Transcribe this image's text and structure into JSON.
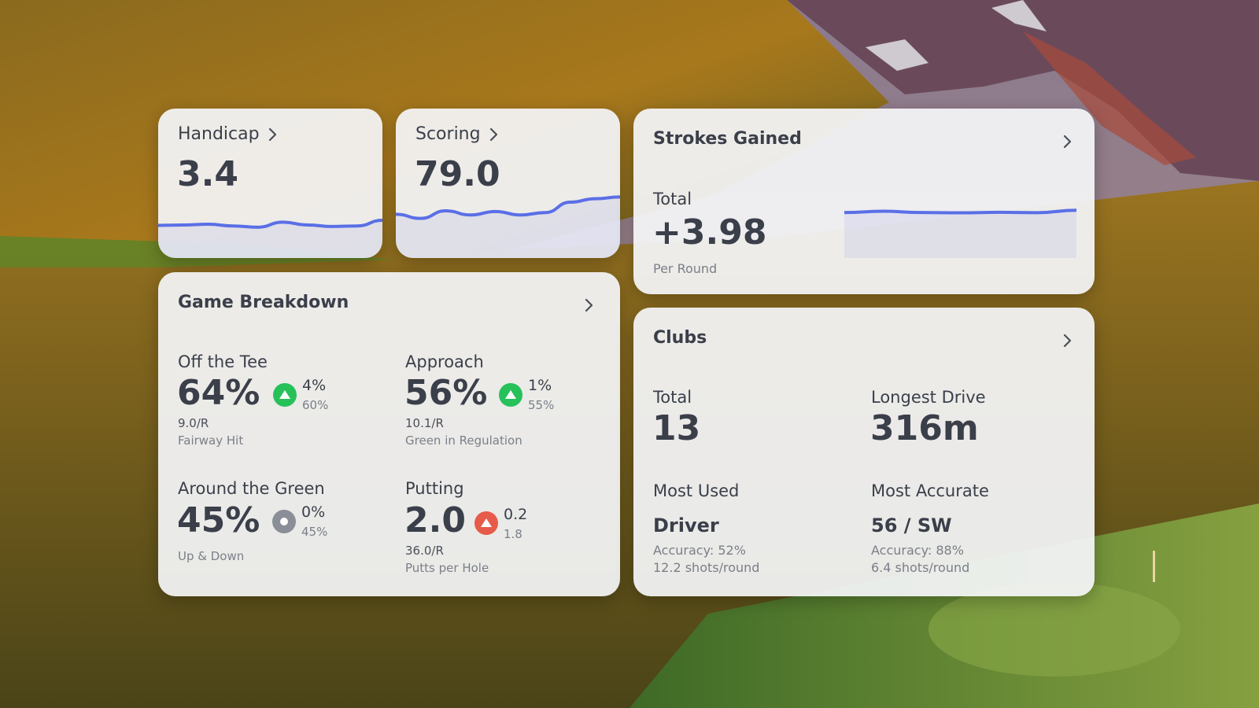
{
  "background": {
    "description_icon": "golf-course-landscape-image"
  },
  "handicap": {
    "title": "Handicap",
    "value": "3.4",
    "trend": [
      0.52,
      0.5,
      0.46,
      0.55,
      0.62,
      0.35,
      0.5,
      0.58,
      0.55,
      0.25
    ]
  },
  "scoring": {
    "title": "Scoring",
    "value": "79.0",
    "trend": [
      0.6,
      0.72,
      0.5,
      0.62,
      0.52,
      0.62,
      0.55,
      0.25,
      0.15,
      0.1
    ]
  },
  "strokes_gained": {
    "title": "Strokes Gained",
    "total_label": "Total",
    "value": "+3.98",
    "unit": "Per Round",
    "trend": [
      0.55,
      0.48,
      0.55,
      0.57,
      0.54,
      0.56,
      0.42
    ]
  },
  "game_breakdown": {
    "title": "Game Breakdown",
    "off_tee": {
      "label": "Off the Tee",
      "value": "64%",
      "delta": "4%",
      "baseline": "60%",
      "per_round": "9.0/R",
      "caption": "Fairway Hit",
      "trend": "up"
    },
    "approach": {
      "label": "Approach",
      "value": "56%",
      "delta": "1%",
      "baseline": "55%",
      "per_round": "10.1/R",
      "caption": "Green in Regulation",
      "trend": "up"
    },
    "around_green": {
      "label": "Around the Green",
      "value": "45%",
      "delta": "0%",
      "baseline": "45%",
      "caption": "Up & Down",
      "trend": "flat"
    },
    "putting": {
      "label": "Putting",
      "value": "2.0",
      "delta": "0.2",
      "baseline": "1.8",
      "per_round": "36.0/R",
      "caption": "Putts per Hole",
      "trend": "down"
    }
  },
  "clubs": {
    "title": "Clubs",
    "total_label": "Total",
    "total_value": "13",
    "longest_label": "Longest Drive",
    "longest_value": "316m",
    "most_used_label": "Most Used",
    "most_used_club": "Driver",
    "most_used_accuracy": "Accuracy: 52%",
    "most_used_shots": "12.2 shots/round",
    "most_accurate_label": "Most Accurate",
    "most_accurate_club": "56 / SW",
    "most_accurate_accuracy": "Accuracy: 88%",
    "most_accurate_shots": "6.4 shots/round"
  },
  "colors": {
    "line": "#5a6fe6",
    "up": "#27c15a",
    "down": "#e65b4a",
    "flat": "#8a8e96"
  }
}
